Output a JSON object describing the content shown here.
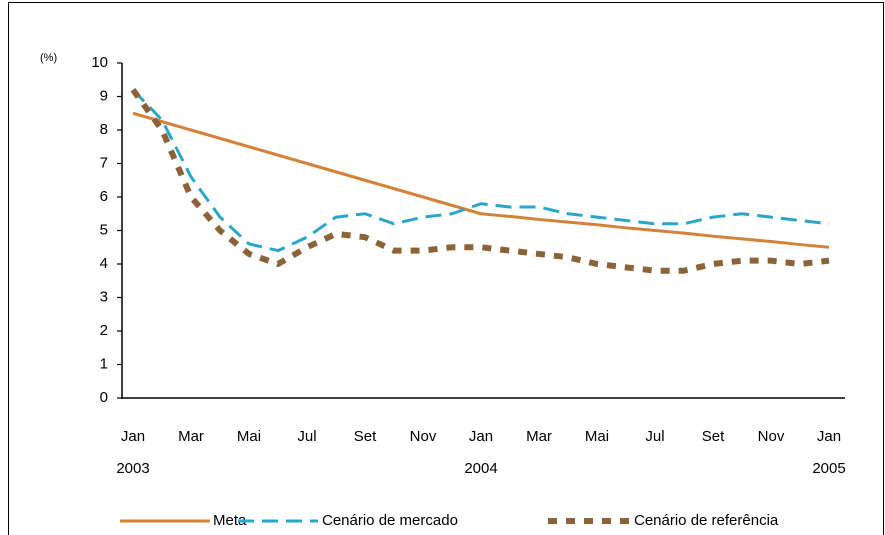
{
  "chart_data": {
    "type": "line",
    "y_unit_label": "(%)",
    "categories": [
      "Jan",
      null,
      "Mar",
      null,
      "Mai",
      null,
      "Jul",
      null,
      "Set",
      null,
      "Nov",
      null,
      "Jan",
      null,
      "Mar",
      null,
      "Mai",
      null,
      "Jul",
      null,
      "Set",
      null,
      "Nov",
      null,
      "Jan"
    ],
    "category_years": [
      "2003",
      null,
      null,
      null,
      null,
      null,
      null,
      null,
      null,
      null,
      null,
      null,
      "2004",
      null,
      null,
      null,
      null,
      null,
      null,
      null,
      null,
      null,
      null,
      null,
      "2005"
    ],
    "series": [
      {
        "name": "Meta",
        "color": "#d4823a",
        "style": "solid",
        "values": [
          8.5,
          8.25,
          8.0,
          7.75,
          7.5,
          7.25,
          7.0,
          6.75,
          6.5,
          6.25,
          6.0,
          5.75,
          5.5,
          5.42,
          5.33,
          5.25,
          5.17,
          5.08,
          5.0,
          4.92,
          4.83,
          4.75,
          4.67,
          4.58,
          4.5
        ]
      },
      {
        "name": "Cenário de mercado",
        "color": "#2ba6cb",
        "style": "dashed",
        "values": [
          9.2,
          8.3,
          6.6,
          5.4,
          4.6,
          4.4,
          4.8,
          5.4,
          5.5,
          5.2,
          5.4,
          5.5,
          5.8,
          5.7,
          5.7,
          5.5,
          5.4,
          5.3,
          5.2,
          5.2,
          5.4,
          5.5,
          5.4,
          5.3,
          5.2
        ]
      },
      {
        "name": "Cenário de referência",
        "color": "#8c6239",
        "style": "dotted",
        "values": [
          9.2,
          8.0,
          6.0,
          5.0,
          4.3,
          4.0,
          4.5,
          4.9,
          4.8,
          4.4,
          4.4,
          4.5,
          4.5,
          4.4,
          4.3,
          4.2,
          4.0,
          3.9,
          3.8,
          3.8,
          4.0,
          4.1,
          4.1,
          4.0,
          4.1
        ]
      }
    ],
    "ylim": [
      0,
      10
    ],
    "yticks": [
      0,
      1,
      2,
      3,
      4,
      5,
      6,
      7,
      8,
      9,
      10
    ],
    "legend": "bottom"
  }
}
